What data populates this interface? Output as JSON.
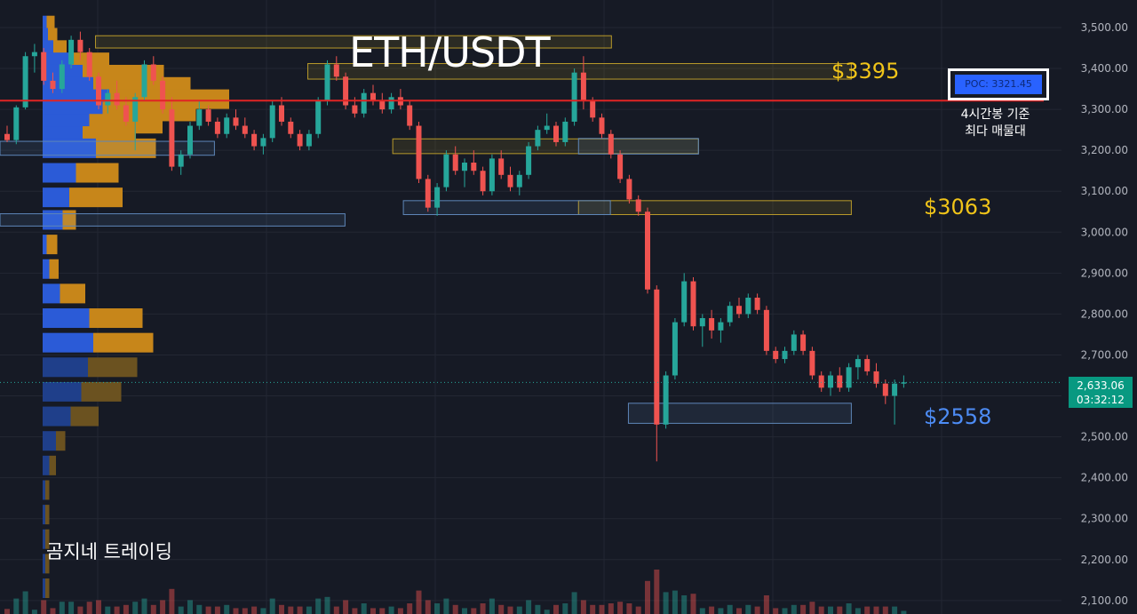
{
  "chart_data": {
    "type": "candlestick",
    "title": "ETH/USDT",
    "watermark": "곰지네 트레이딩",
    "y_axis": {
      "ylim": [
        2080,
        3565
      ],
      "ticks": [
        3500,
        3400,
        3300,
        3200,
        3100,
        3000,
        2900,
        2800,
        2700,
        2600,
        2500,
        2400,
        2300,
        2200,
        2100
      ],
      "tick_labels": [
        "3,500.00",
        "3,400.00",
        "3,300.00",
        "3,200.00",
        "3,100.00",
        "3,000.00",
        "2,900.00",
        "2,800.00",
        "2,700.00",
        "2,600.00",
        "2,500.00",
        "2,400.00",
        "2,300.00",
        "2,200.00",
        "2,100.00"
      ]
    },
    "current_price": {
      "price": 2633.06,
      "label": "2,633.06",
      "countdown": "03:32:12"
    },
    "poc": {
      "price": 3321.45,
      "label": "POC: 3321.45",
      "note_lines": [
        "4시간봉 기준",
        "최다 매물대"
      ]
    },
    "level_labels": [
      {
        "label": "$3395",
        "price": 3395,
        "color": "#f0c419"
      },
      {
        "label": "$3063",
        "price": 3063,
        "color": "#f0c419"
      },
      {
        "label": "$2558",
        "price": 2558,
        "color": "#4d8cf5"
      }
    ],
    "zones": [
      {
        "x0": 0.09,
        "x1": 0.576,
        "top": 3480,
        "bottom": 3450,
        "kind": "supply"
      },
      {
        "x0": 0.29,
        "x1": 0.802,
        "top": 3412,
        "bottom": 3374,
        "kind": "supply"
      },
      {
        "x0": 0.37,
        "x1": 0.658,
        "top": 3228,
        "bottom": 3192,
        "kind": "supply"
      },
      {
        "x0": 0.0,
        "x1": 0.202,
        "top": 3222,
        "bottom": 3188,
        "kind": "demand"
      },
      {
        "x0": 0.545,
        "x1": 0.658,
        "top": 3229,
        "bottom": 3191,
        "kind": "demand"
      },
      {
        "x0": 0.545,
        "x1": 0.802,
        "top": 3077,
        "bottom": 3043,
        "kind": "supply"
      },
      {
        "x0": 0.38,
        "x1": 0.575,
        "top": 3077,
        "bottom": 3043,
        "kind": "demand"
      },
      {
        "x0": 0.0,
        "x1": 0.325,
        "top": 3045,
        "bottom": 3015,
        "kind": "demand"
      },
      {
        "x0": 0.592,
        "x1": 0.802,
        "top": 2582,
        "bottom": 2533,
        "kind": "demand"
      }
    ],
    "volume_profile": [
      {
        "price": 3505,
        "buy": 3,
        "sell": 6
      },
      {
        "price": 3475,
        "buy": 4,
        "sell": 7
      },
      {
        "price": 3445,
        "buy": 8,
        "sell": 10
      },
      {
        "price": 3415,
        "buy": 22,
        "sell": 28
      },
      {
        "price": 3385,
        "buy": 30,
        "sell": 61
      },
      {
        "price": 3355,
        "buy": 38,
        "sell": 73
      },
      {
        "price": 3325,
        "buy": 50,
        "sell": 90
      },
      {
        "price": 3295,
        "buy": 45,
        "sell": 70
      },
      {
        "price": 3265,
        "buy": 35,
        "sell": 55
      },
      {
        "price": 3235,
        "buy": 30,
        "sell": 40
      },
      {
        "price": 3205,
        "buy": 40,
        "sell": 45
      },
      {
        "price": 3145,
        "buy": 25,
        "sell": 32
      },
      {
        "price": 3085,
        "buy": 20,
        "sell": 40
      },
      {
        "price": 3030,
        "buy": 15,
        "sell": 10
      },
      {
        "price": 2970,
        "buy": 3,
        "sell": 8
      },
      {
        "price": 2910,
        "buy": 5,
        "sell": 7
      },
      {
        "price": 2850,
        "buy": 13,
        "sell": 19
      },
      {
        "price": 2790,
        "buy": 35,
        "sell": 40
      },
      {
        "price": 2730,
        "buy": 38,
        "sell": 45
      },
      {
        "price": 2670,
        "buy": 34,
        "sell": 37
      },
      {
        "price": 2610,
        "buy": 29,
        "sell": 30
      },
      {
        "price": 2550,
        "buy": 21,
        "sell": 21
      },
      {
        "price": 2490,
        "buy": 10,
        "sell": 7
      },
      {
        "price": 2430,
        "buy": 5,
        "sell": 5
      },
      {
        "price": 2370,
        "buy": 2,
        "sell": 3
      },
      {
        "price": 2310,
        "buy": 2,
        "sell": 3
      },
      {
        "price": 2250,
        "buy": 2,
        "sell": 3
      },
      {
        "price": 2190,
        "buy": 2,
        "sell": 3
      },
      {
        "price": 2130,
        "buy": 2,
        "sell": 3
      }
    ],
    "candles": [
      [
        3240,
        3260,
        3220,
        3225
      ],
      [
        3225,
        3310,
        3215,
        3305
      ],
      [
        3305,
        3440,
        3300,
        3430
      ],
      [
        3430,
        3460,
        3390,
        3440
      ],
      [
        3440,
        3450,
        3360,
        3370
      ],
      [
        3370,
        3390,
        3340,
        3350
      ],
      [
        3350,
        3420,
        3340,
        3410
      ],
      [
        3410,
        3480,
        3400,
        3470
      ],
      [
        3470,
        3490,
        3420,
        3440
      ],
      [
        3440,
        3450,
        3370,
        3380
      ],
      [
        3380,
        3390,
        3300,
        3310
      ],
      [
        3310,
        3350,
        3290,
        3340
      ],
      [
        3340,
        3370,
        3300,
        3310
      ],
      [
        3310,
        3330,
        3260,
        3270
      ],
      [
        3270,
        3340,
        3200,
        3330
      ],
      [
        3330,
        3420,
        3320,
        3410
      ],
      [
        3410,
        3430,
        3360,
        3370
      ],
      [
        3370,
        3380,
        3290,
        3300
      ],
      [
        3300,
        3330,
        3150,
        3160
      ],
      [
        3160,
        3200,
        3140,
        3190
      ],
      [
        3190,
        3270,
        3180,
        3260
      ],
      [
        3260,
        3320,
        3250,
        3300
      ],
      [
        3300,
        3310,
        3260,
        3270
      ],
      [
        3270,
        3280,
        3230,
        3240
      ],
      [
        3240,
        3290,
        3230,
        3280
      ],
      [
        3280,
        3300,
        3250,
        3260
      ],
      [
        3260,
        3280,
        3230,
        3240
      ],
      [
        3240,
        3250,
        3200,
        3210
      ],
      [
        3210,
        3240,
        3190,
        3230
      ],
      [
        3230,
        3320,
        3220,
        3310
      ],
      [
        3310,
        3330,
        3260,
        3270
      ],
      [
        3270,
        3280,
        3230,
        3240
      ],
      [
        3240,
        3250,
        3200,
        3210
      ],
      [
        3210,
        3250,
        3200,
        3240
      ],
      [
        3240,
        3330,
        3230,
        3320
      ],
      [
        3320,
        3420,
        3310,
        3410
      ],
      [
        3410,
        3430,
        3370,
        3380
      ],
      [
        3380,
        3390,
        3300,
        3310
      ],
      [
        3310,
        3330,
        3280,
        3290
      ],
      [
        3290,
        3350,
        3280,
        3340
      ],
      [
        3340,
        3360,
        3310,
        3320
      ],
      [
        3320,
        3340,
        3290,
        3300
      ],
      [
        3300,
        3340,
        3290,
        3330
      ],
      [
        3330,
        3350,
        3300,
        3310
      ],
      [
        3310,
        3320,
        3250,
        3260
      ],
      [
        3260,
        3270,
        3120,
        3130
      ],
      [
        3130,
        3140,
        3050,
        3060
      ],
      [
        3060,
        3120,
        3040,
        3110
      ],
      [
        3110,
        3200,
        3100,
        3190
      ],
      [
        3190,
        3210,
        3140,
        3150
      ],
      [
        3150,
        3180,
        3110,
        3170
      ],
      [
        3170,
        3200,
        3140,
        3150
      ],
      [
        3150,
        3160,
        3090,
        3100
      ],
      [
        3100,
        3190,
        3090,
        3180
      ],
      [
        3180,
        3200,
        3130,
        3140
      ],
      [
        3140,
        3160,
        3100,
        3110
      ],
      [
        3110,
        3150,
        3090,
        3140
      ],
      [
        3140,
        3220,
        3130,
        3210
      ],
      [
        3210,
        3260,
        3200,
        3250
      ],
      [
        3250,
        3290,
        3240,
        3260
      ],
      [
        3260,
        3270,
        3210,
        3220
      ],
      [
        3220,
        3280,
        3210,
        3270
      ],
      [
        3270,
        3400,
        3260,
        3390
      ],
      [
        3390,
        3430,
        3300,
        3320
      ],
      [
        3320,
        3330,
        3270,
        3280
      ],
      [
        3280,
        3290,
        3230,
        3240
      ],
      [
        3240,
        3250,
        3180,
        3190
      ],
      [
        3190,
        3200,
        3120,
        3130
      ],
      [
        3130,
        3140,
        3070,
        3080
      ],
      [
        3080,
        3090,
        3040,
        3050
      ],
      [
        3050,
        3060,
        2850,
        2860
      ],
      [
        2860,
        2870,
        2440,
        2530
      ],
      [
        2530,
        2660,
        2520,
        2650
      ],
      [
        2650,
        2790,
        2640,
        2780
      ],
      [
        2780,
        2900,
        2770,
        2880
      ],
      [
        2880,
        2890,
        2760,
        2770
      ],
      [
        2770,
        2800,
        2720,
        2790
      ],
      [
        2790,
        2810,
        2740,
        2760
      ],
      [
        2760,
        2790,
        2730,
        2780
      ],
      [
        2780,
        2830,
        2770,
        2820
      ],
      [
        2820,
        2840,
        2790,
        2800
      ],
      [
        2800,
        2850,
        2790,
        2840
      ],
      [
        2840,
        2850,
        2800,
        2810
      ],
      [
        2810,
        2820,
        2700,
        2710
      ],
      [
        2710,
        2720,
        2680,
        2690
      ],
      [
        2690,
        2720,
        2680,
        2710
      ],
      [
        2710,
        2760,
        2700,
        2750
      ],
      [
        2750,
        2760,
        2700,
        2710
      ],
      [
        2710,
        2720,
        2640,
        2650
      ],
      [
        2650,
        2660,
        2610,
        2620
      ],
      [
        2620,
        2660,
        2600,
        2650
      ],
      [
        2650,
        2670,
        2610,
        2620
      ],
      [
        2620,
        2680,
        2610,
        2670
      ],
      [
        2670,
        2700,
        2640,
        2690
      ],
      [
        2690,
        2700,
        2650,
        2660
      ],
      [
        2660,
        2680,
        2620,
        2630
      ],
      [
        2630,
        2640,
        2580,
        2600
      ],
      [
        2600,
        2640,
        2530,
        2630
      ],
      [
        2630,
        2650,
        2620,
        2633
      ]
    ]
  }
}
